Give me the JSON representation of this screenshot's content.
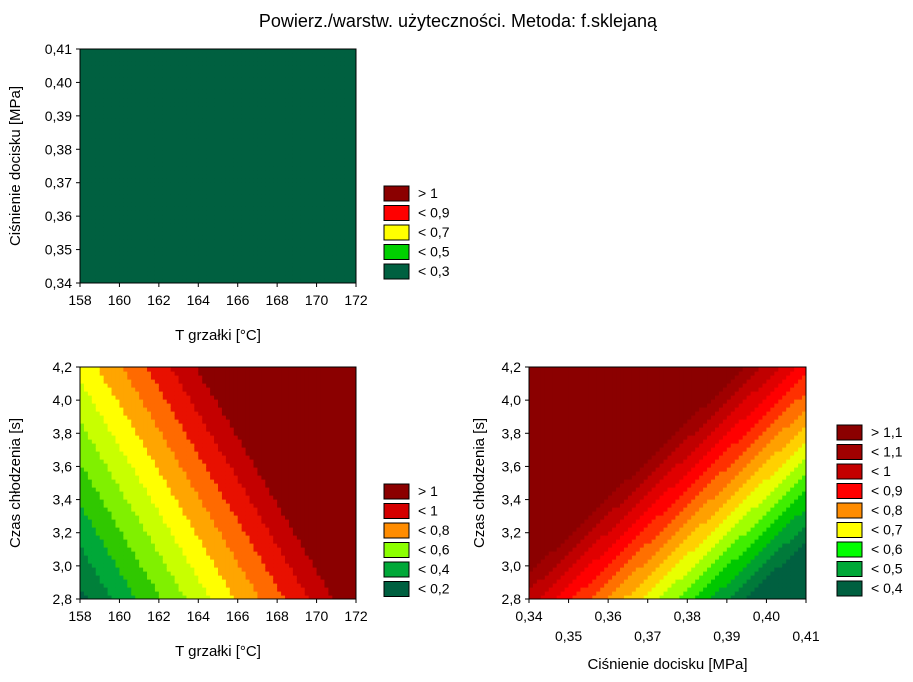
{
  "title": "Powierz./warstw. użyteczności. Metoda: f.sklejaną",
  "colors": {
    "gt_1_1": "#6b0000",
    "lt_1_1": "#8b0000",
    "lt_1": "#c40000",
    "lt_0_9": "#ff0000",
    "lt_0_8": "#ff8c00",
    "lt_0_7": "#ffff00",
    "lt_0_6": "#8cff00",
    "lt_0_5": "#00d000",
    "lt_0_4": "#009a30",
    "lt_0_3": "#006040",
    "lt_0_2": "#005a3e"
  },
  "chart_data": [
    {
      "type": "heatmap",
      "xlabel": "T grzałki [°C]",
      "ylabel": "Ciśnienie docisku [MPa]",
      "xlim": [
        158,
        172
      ],
      "ylim": [
        0.34,
        0.41
      ],
      "x_ticks": [
        "158",
        "160",
        "162",
        "164",
        "166",
        "168",
        "170",
        "172"
      ],
      "y_ticks": [
        "0,34",
        "0,35",
        "0,36",
        "0,37",
        "0,38",
        "0,39",
        "0,40",
        "0,41"
      ],
      "surface": {
        "a": 0.08,
        "b": -8,
        "c": -11.96
      },
      "levels": [
        {
          "label": "> 1",
          "max": 99,
          "color": "#8b0000"
        },
        {
          "label": "< 0,9",
          "max": 0.9,
          "color": "#ff0000"
        },
        {
          "label": "< 0,7",
          "max": 0.7,
          "color": "#ffff00"
        },
        {
          "label": "< 0,5",
          "max": 0.5,
          "color": "#00d000"
        },
        {
          "label": "< 0,3",
          "max": 0.3,
          "color": "#006040"
        }
      ],
      "bands": [
        {
          "max": 0.2,
          "color": "#006040"
        },
        {
          "max": 0.3,
          "color": "#00803a"
        },
        {
          "max": 0.4,
          "color": "#00a838"
        },
        {
          "max": 0.5,
          "color": "#30dc00"
        },
        {
          "max": 0.6,
          "color": "#b4ff00"
        },
        {
          "max": 0.7,
          "color": "#ffff00"
        },
        {
          "max": 0.8,
          "color": "#ffa500"
        },
        {
          "max": 0.9,
          "color": "#ff6a00"
        },
        {
          "max": 1.0,
          "color": "#ff0000"
        },
        {
          "max": 1.1,
          "color": "#d40000"
        },
        {
          "max": 99,
          "color": "#8b0000"
        }
      ]
    },
    {
      "type": "heatmap",
      "xlabel": "T grzałki [°C]",
      "ylabel": "Czas chłodzenia [s]",
      "xlim": [
        158,
        172
      ],
      "ylim": [
        2.8,
        4.2
      ],
      "x_ticks": [
        "158",
        "160",
        "162",
        "164",
        "166",
        "168",
        "170",
        "172"
      ],
      "y_ticks": [
        "2,8",
        "3,0",
        "3,2",
        "3,4",
        "3,6",
        "3,8",
        "4,0",
        "4,2"
      ],
      "surface": {
        "a": 0.08,
        "b": 0.4,
        "c": -13.69
      },
      "levels": [
        {
          "label": "> 1",
          "max": 99,
          "color": "#8b0000"
        },
        {
          "label": "< 1",
          "max": 1.0,
          "color": "#d40000"
        },
        {
          "label": "< 0,8",
          "max": 0.8,
          "color": "#ff8c00"
        },
        {
          "label": "< 0,6",
          "max": 0.6,
          "color": "#8cff00"
        },
        {
          "label": "< 0,4",
          "max": 0.4,
          "color": "#00a838"
        },
        {
          "label": "< 0,2",
          "max": 0.2,
          "color": "#006040"
        }
      ],
      "bands": [
        {
          "max": 0.1,
          "color": "#006040"
        },
        {
          "max": 0.2,
          "color": "#00803a"
        },
        {
          "max": 0.3,
          "color": "#00a838"
        },
        {
          "max": 0.4,
          "color": "#30c800"
        },
        {
          "max": 0.5,
          "color": "#80f000"
        },
        {
          "max": 0.6,
          "color": "#c8ff00"
        },
        {
          "max": 0.7,
          "color": "#ffff00"
        },
        {
          "max": 0.8,
          "color": "#ffa500"
        },
        {
          "max": 0.9,
          "color": "#ff6a00"
        },
        {
          "max": 1.0,
          "color": "#e81000"
        },
        {
          "max": 1.1,
          "color": "#c40000"
        },
        {
          "max": 99,
          "color": "#8b0000"
        }
      ]
    },
    {
      "type": "heatmap",
      "xlabel": "Ciśnienie docisku [MPa]",
      "ylabel": "Czas chłodzenia [s]",
      "xlim": [
        0.34,
        0.41
      ],
      "ylim": [
        2.8,
        4.2
      ],
      "x_ticks_top": [
        "0,34",
        "0,36",
        "0,38",
        "0,40"
      ],
      "x_ticks_bottom": [
        "0,35",
        "0,37",
        "0,39",
        "0,41"
      ],
      "y_ticks": [
        "2,8",
        "3,0",
        "3,2",
        "3,4",
        "3,6",
        "3,8",
        "4,0",
        "4,2"
      ],
      "surface": {
        "a": -11.43,
        "b": 0.5,
        "c": 3.51
      },
      "levels": [
        {
          "label": "> 1,1",
          "max": 99,
          "color": "#8b0000"
        },
        {
          "label": "< 1,1",
          "max": 1.1,
          "color": "#a00000"
        },
        {
          "label": "< 1",
          "max": 1.0,
          "color": "#c40000"
        },
        {
          "label": "< 0,9",
          "max": 0.9,
          "color": "#ff0000"
        },
        {
          "label": "< 0,8",
          "max": 0.8,
          "color": "#ff8c00"
        },
        {
          "label": "< 0,7",
          "max": 0.7,
          "color": "#ffff00"
        },
        {
          "label": "< 0,6",
          "max": 0.6,
          "color": "#00ff00"
        },
        {
          "label": "< 0,5",
          "max": 0.5,
          "color": "#00a838"
        },
        {
          "label": "< 0,4",
          "max": 0.4,
          "color": "#006040"
        }
      ],
      "bands": [
        {
          "max": 0.4,
          "color": "#006040"
        },
        {
          "max": 0.45,
          "color": "#007a3a"
        },
        {
          "max": 0.5,
          "color": "#00a030"
        },
        {
          "max": 0.55,
          "color": "#00c800"
        },
        {
          "max": 0.6,
          "color": "#40ee00"
        },
        {
          "max": 0.65,
          "color": "#a0ff00"
        },
        {
          "max": 0.7,
          "color": "#e8ff00"
        },
        {
          "max": 0.75,
          "color": "#ffd000"
        },
        {
          "max": 0.8,
          "color": "#ffa000"
        },
        {
          "max": 0.85,
          "color": "#ff7000"
        },
        {
          "max": 0.9,
          "color": "#ff3000"
        },
        {
          "max": 0.95,
          "color": "#ff0000"
        },
        {
          "max": 1.0,
          "color": "#e00000"
        },
        {
          "max": 1.05,
          "color": "#c00000"
        },
        {
          "max": 1.1,
          "color": "#a00000"
        },
        {
          "max": 99,
          "color": "#8b0000"
        }
      ]
    }
  ]
}
